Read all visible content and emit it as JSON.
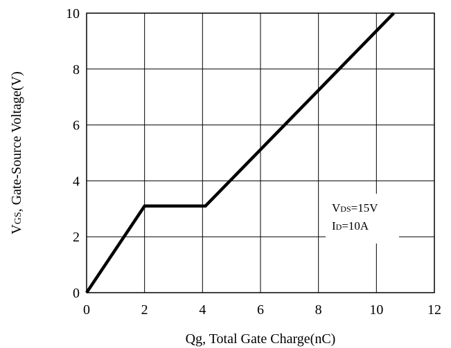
{
  "chart_data": {
    "type": "line",
    "xlabel": "Qg, Total Gate Charge(nC)",
    "ylabel": {
      "main": "V",
      "sub": "GS",
      "rest": ", Gate-Source Voltage(V)"
    },
    "xlim": [
      0,
      12
    ],
    "ylim": [
      0,
      10
    ],
    "x_ticks": [
      "0",
      "2",
      "4",
      "6",
      "8",
      "10",
      "12"
    ],
    "y_ticks": [
      "0",
      "2",
      "4",
      "6",
      "8",
      "10"
    ],
    "grid": true,
    "series": [
      {
        "x": [
          0,
          2.0,
          4.1,
          10.6
        ],
        "y": [
          0,
          3.1,
          3.1,
          10.0
        ]
      }
    ],
    "annotations": [
      {
        "main": "V",
        "sub": "DS",
        "rest": "=15V"
      },
      {
        "main": "I",
        "sub": "D",
        "rest": "=10A"
      }
    ]
  }
}
